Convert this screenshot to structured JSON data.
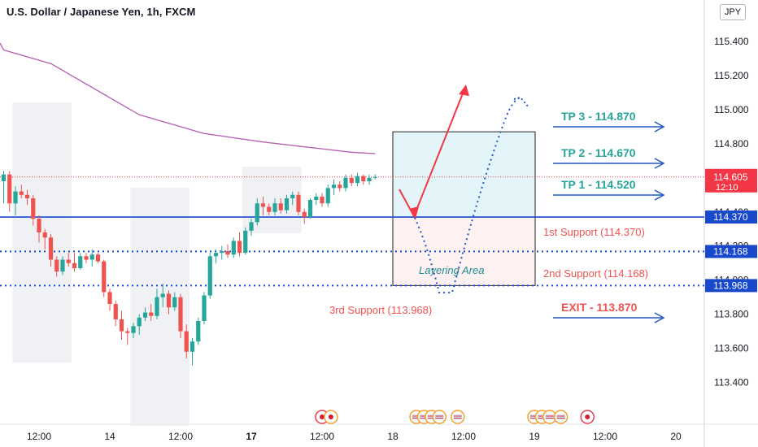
{
  "header": {
    "title": "U.S. Dollar / Japanese Yen, 1h, FXCM",
    "currency": "JPY"
  },
  "colors": {
    "up": "#26a69a",
    "down": "#ef5350",
    "ma": "#b55bb0",
    "support": "#1848cc",
    "tp": "#26a69a",
    "exit": "#ef5350",
    "arrow": "#2457c5",
    "red_arrow": "#f23645",
    "current_price": "#f23645"
  },
  "chart_data": {
    "type": "candlestick",
    "instrument": "U.S. Dollar / Japanese Yen",
    "timeframe": "1h",
    "ylim": [
      113.25,
      115.5
    ],
    "y_ticks": [
      {
        "value": 115.4,
        "label": "115.400"
      },
      {
        "value": 115.2,
        "label": "115.200"
      },
      {
        "value": 115.0,
        "label": "115.000"
      },
      {
        "value": 114.8,
        "label": "114.800"
      },
      {
        "value": 114.6,
        "label": "114.600"
      },
      {
        "value": 114.4,
        "label": "114.400"
      },
      {
        "value": 114.2,
        "label": "114.200"
      },
      {
        "value": 114.0,
        "label": "114.000"
      },
      {
        "value": 113.8,
        "label": "113.800"
      },
      {
        "value": 113.6,
        "label": "113.600"
      },
      {
        "value": 113.4,
        "label": "113.400"
      }
    ],
    "x_ticks": [
      {
        "bar": 6,
        "label": "12:00",
        "bold": false
      },
      {
        "bar": 18,
        "label": "14",
        "bold": false
      },
      {
        "bar": 30,
        "label": "12:00",
        "bold": false
      },
      {
        "bar": 42,
        "label": "17",
        "bold": true
      },
      {
        "bar": 54,
        "label": "12:00",
        "bold": false
      },
      {
        "bar": 66,
        "label": "18",
        "bold": false
      },
      {
        "bar": 78,
        "label": "12:00",
        "bold": false
      },
      {
        "bar": 90,
        "label": "19",
        "bold": false
      },
      {
        "bar": 102,
        "label": "12:00",
        "bold": false
      },
      {
        "bar": 114,
        "label": "20",
        "bold": false
      }
    ],
    "candles": [
      {
        "o": 114.58,
        "h": 114.64,
        "l": 114.45,
        "c": 114.62
      },
      {
        "o": 114.62,
        "h": 114.64,
        "l": 114.4,
        "c": 114.45
      },
      {
        "o": 114.45,
        "h": 114.55,
        "l": 114.38,
        "c": 114.52
      },
      {
        "o": 114.52,
        "h": 114.56,
        "l": 114.48,
        "c": 114.5
      },
      {
        "o": 114.5,
        "h": 114.53,
        "l": 114.44,
        "c": 114.48
      },
      {
        "o": 114.48,
        "h": 114.5,
        "l": 114.32,
        "c": 114.36
      },
      {
        "o": 114.36,
        "h": 114.38,
        "l": 114.22,
        "c": 114.28
      },
      {
        "o": 114.28,
        "h": 114.3,
        "l": 114.18,
        "c": 114.25
      },
      {
        "o": 114.25,
        "h": 114.27,
        "l": 114.08,
        "c": 114.12
      },
      {
        "o": 114.12,
        "h": 114.14,
        "l": 114.02,
        "c": 114.05
      },
      {
        "o": 114.05,
        "h": 114.14,
        "l": 114.03,
        "c": 114.12
      },
      {
        "o": 114.12,
        "h": 114.16,
        "l": 114.08,
        "c": 114.1
      },
      {
        "o": 114.1,
        "h": 114.16,
        "l": 114.05,
        "c": 114.07
      },
      {
        "o": 114.07,
        "h": 114.16,
        "l": 114.06,
        "c": 114.14
      },
      {
        "o": 114.14,
        "h": 114.16,
        "l": 114.1,
        "c": 114.12
      },
      {
        "o": 114.12,
        "h": 114.18,
        "l": 114.08,
        "c": 114.15
      },
      {
        "o": 114.15,
        "h": 114.16,
        "l": 114.1,
        "c": 114.11
      },
      {
        "o": 114.11,
        "h": 114.12,
        "l": 113.9,
        "c": 113.93
      },
      {
        "o": 113.93,
        "h": 113.95,
        "l": 113.82,
        "c": 113.86
      },
      {
        "o": 113.86,
        "h": 113.88,
        "l": 113.73,
        "c": 113.77
      },
      {
        "o": 113.77,
        "h": 113.82,
        "l": 113.65,
        "c": 113.7
      },
      {
        "o": 113.7,
        "h": 113.72,
        "l": 113.62,
        "c": 113.69
      },
      {
        "o": 113.69,
        "h": 113.75,
        "l": 113.66,
        "c": 113.73
      },
      {
        "o": 113.73,
        "h": 113.8,
        "l": 113.68,
        "c": 113.78
      },
      {
        "o": 113.78,
        "h": 113.84,
        "l": 113.76,
        "c": 113.81
      },
      {
        "o": 113.81,
        "h": 113.86,
        "l": 113.76,
        "c": 113.79
      },
      {
        "o": 113.79,
        "h": 113.95,
        "l": 113.77,
        "c": 113.9
      },
      {
        "o": 113.9,
        "h": 113.98,
        "l": 113.84,
        "c": 113.92
      },
      {
        "o": 113.92,
        "h": 113.94,
        "l": 113.8,
        "c": 113.84
      },
      {
        "o": 113.84,
        "h": 113.93,
        "l": 113.82,
        "c": 113.9
      },
      {
        "o": 113.9,
        "h": 113.92,
        "l": 113.66,
        "c": 113.7
      },
      {
        "o": 113.7,
        "h": 113.74,
        "l": 113.54,
        "c": 113.58
      },
      {
        "o": 113.58,
        "h": 113.66,
        "l": 113.5,
        "c": 113.64
      },
      {
        "o": 113.64,
        "h": 113.78,
        "l": 113.62,
        "c": 113.76
      },
      {
        "o": 113.76,
        "h": 113.93,
        "l": 113.74,
        "c": 113.91
      },
      {
        "o": 113.91,
        "h": 114.16,
        "l": 113.89,
        "c": 114.14
      },
      {
        "o": 114.14,
        "h": 114.18,
        "l": 114.1,
        "c": 114.16
      },
      {
        "o": 114.16,
        "h": 114.2,
        "l": 114.12,
        "c": 114.17
      },
      {
        "o": 114.17,
        "h": 114.21,
        "l": 114.13,
        "c": 114.15
      },
      {
        "o": 114.15,
        "h": 114.25,
        "l": 114.13,
        "c": 114.23
      },
      {
        "o": 114.23,
        "h": 114.28,
        "l": 114.14,
        "c": 114.16
      },
      {
        "o": 114.16,
        "h": 114.31,
        "l": 114.15,
        "c": 114.29
      },
      {
        "o": 114.29,
        "h": 114.36,
        "l": 114.26,
        "c": 114.34
      },
      {
        "o": 114.34,
        "h": 114.48,
        "l": 114.32,
        "c": 114.45
      },
      {
        "o": 114.45,
        "h": 114.49,
        "l": 114.38,
        "c": 114.43
      },
      {
        "o": 114.43,
        "h": 114.45,
        "l": 114.38,
        "c": 114.4
      },
      {
        "o": 114.4,
        "h": 114.48,
        "l": 114.38,
        "c": 114.45
      },
      {
        "o": 114.45,
        "h": 114.48,
        "l": 114.39,
        "c": 114.41
      },
      {
        "o": 114.41,
        "h": 114.5,
        "l": 114.39,
        "c": 114.48
      },
      {
        "o": 114.48,
        "h": 114.52,
        "l": 114.44,
        "c": 114.5
      },
      {
        "o": 114.5,
        "h": 114.52,
        "l": 114.38,
        "c": 114.4
      },
      {
        "o": 114.4,
        "h": 114.42,
        "l": 114.33,
        "c": 114.37
      },
      {
        "o": 114.37,
        "h": 114.48,
        "l": 114.36,
        "c": 114.47
      },
      {
        "o": 114.47,
        "h": 114.51,
        "l": 114.44,
        "c": 114.49
      },
      {
        "o": 114.49,
        "h": 114.51,
        "l": 114.43,
        "c": 114.45
      },
      {
        "o": 114.45,
        "h": 114.56,
        "l": 114.43,
        "c": 114.54
      },
      {
        "o": 114.54,
        "h": 114.59,
        "l": 114.5,
        "c": 114.56
      },
      {
        "o": 114.56,
        "h": 114.58,
        "l": 114.52,
        "c": 114.54
      },
      {
        "o": 114.54,
        "h": 114.62,
        "l": 114.52,
        "c": 114.6
      },
      {
        "o": 114.6,
        "h": 114.62,
        "l": 114.55,
        "c": 114.57
      },
      {
        "o": 114.57,
        "h": 114.63,
        "l": 114.55,
        "c": 114.61
      },
      {
        "o": 114.61,
        "h": 114.62,
        "l": 114.56,
        "c": 114.58
      },
      {
        "o": 114.58,
        "h": 114.62,
        "l": 114.56,
        "c": 114.6
      },
      {
        "o": 114.6,
        "h": 114.62,
        "l": 114.59,
        "c": 114.605
      }
    ],
    "moving_average": {
      "name": "",
      "values": [
        115.35,
        115.34,
        115.33,
        115.32,
        115.31,
        115.3,
        115.29,
        115.28,
        115.27,
        115.25,
        115.23,
        115.21,
        115.19,
        115.17,
        115.15,
        115.13,
        115.11,
        115.09,
        115.07,
        115.05,
        115.03,
        115.01,
        114.99,
        114.97,
        114.96,
        114.95,
        114.94,
        114.93,
        114.92,
        114.91,
        114.9,
        114.89,
        114.88,
        114.87,
        114.86,
        114.855,
        114.85,
        114.845,
        114.84,
        114.835,
        114.83,
        114.825,
        114.82,
        114.815,
        114.81,
        114.806,
        114.802,
        114.798,
        114.794,
        114.79,
        114.786,
        114.782,
        114.778,
        114.774,
        114.77,
        114.766,
        114.762,
        114.758,
        114.754,
        114.75,
        114.748,
        114.746,
        114.744,
        114.742
      ]
    },
    "session_bands": [
      {
        "from": 1.5,
        "to": 11.5
      },
      {
        "from": 21.5,
        "to": 31.5
      },
      {
        "from": 40.5,
        "to": 50.5
      }
    ],
    "levels": [
      {
        "value": 114.37,
        "style": "solid",
        "axis_label": "114.370",
        "text": "1st Support (114.370)"
      },
      {
        "value": 114.168,
        "style": "dotted",
        "axis_label": "114.168",
        "text": "2nd Support (114.168)"
      },
      {
        "value": 113.968,
        "style": "dotted",
        "axis_label": "113.968",
        "text": "3rd Support (113.968)"
      }
    ],
    "current_price": {
      "value": 114.605,
      "label": "114.605",
      "countdown": "12:10"
    },
    "targets": [
      {
        "label": "TP 3 - 114.870",
        "value": 114.87,
        "kind": "tp"
      },
      {
        "label": "TP 2 - 114.670",
        "value": 114.67,
        "kind": "tp"
      },
      {
        "label": "TP 1 - 114.520",
        "value": 114.52,
        "kind": "tp"
      },
      {
        "label": "EXIT - 113.870",
        "value": 113.87,
        "kind": "exit"
      }
    ],
    "zone": {
      "top": 114.87,
      "entry": 114.37,
      "bottom": 113.968,
      "label": "Layering Area"
    },
    "events": [
      {
        "bar": 54,
        "kind": "red"
      },
      {
        "bar": 55.5,
        "kind": "orange"
      },
      {
        "bar": 70,
        "kind": "us"
      },
      {
        "bar": 71.3,
        "kind": "us"
      },
      {
        "bar": 72.6,
        "kind": "us"
      },
      {
        "bar": 73.9,
        "kind": "us"
      },
      {
        "bar": 77,
        "kind": "us"
      },
      {
        "bar": 90,
        "kind": "us"
      },
      {
        "bar": 91.3,
        "kind": "us"
      },
      {
        "bar": 92.6,
        "kind": "us"
      },
      {
        "bar": 94.5,
        "kind": "us"
      },
      {
        "bar": 99,
        "kind": "red"
      }
    ]
  }
}
